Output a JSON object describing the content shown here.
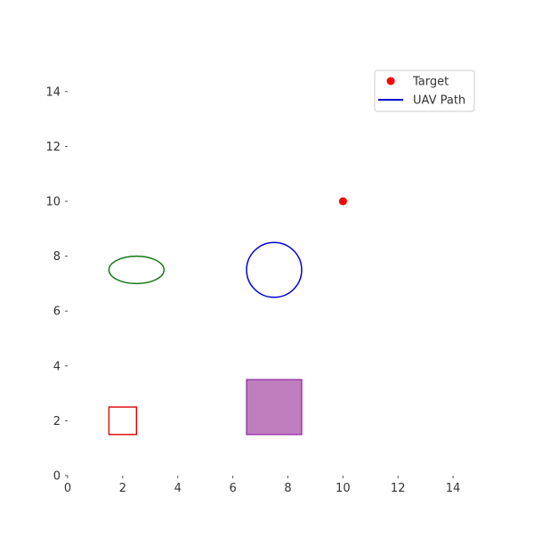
{
  "chart_data": {
    "type": "scatter",
    "title": "",
    "xlabel": "",
    "ylabel": "",
    "xlim": [
      0,
      15
    ],
    "ylim": [
      0,
      15
    ],
    "xticks": [
      0,
      2,
      4,
      6,
      8,
      10,
      12,
      14
    ],
    "yticks": [
      0,
      2,
      4,
      6,
      8,
      10,
      12,
      14
    ],
    "grid": false,
    "legend": {
      "placement": "top-right",
      "entries": [
        {
          "label": "Target",
          "marker": "dot",
          "color": "#ff0000"
        },
        {
          "label": "UAV Path",
          "marker": "line",
          "color": "#0000cc"
        }
      ]
    },
    "series": [
      {
        "name": "Target",
        "x": [
          10
        ],
        "y": [
          10
        ],
        "color": "#ff0000"
      },
      {
        "name": "UAV Path",
        "x": [],
        "y": [],
        "color": "#0000cc"
      }
    ],
    "shapes": [
      {
        "kind": "rectangle",
        "x": 1.5,
        "y": 1.5,
        "width": 1,
        "height": 1,
        "stroke": "#dd0000",
        "fill": "none"
      },
      {
        "kind": "rectangle",
        "x": 6.5,
        "y": 1.5,
        "width": 2,
        "height": 2,
        "stroke": "#9933aa",
        "fill": "#bf7fbf"
      },
      {
        "kind": "ellipse",
        "cx": 2.5,
        "cy": 7.5,
        "rx": 1,
        "ry": 0.5,
        "stroke": "#117711",
        "fill": "none"
      },
      {
        "kind": "circle",
        "cx": 7.5,
        "cy": 7.5,
        "r": 1,
        "stroke": "#0000dd",
        "fill": "none"
      }
    ]
  }
}
